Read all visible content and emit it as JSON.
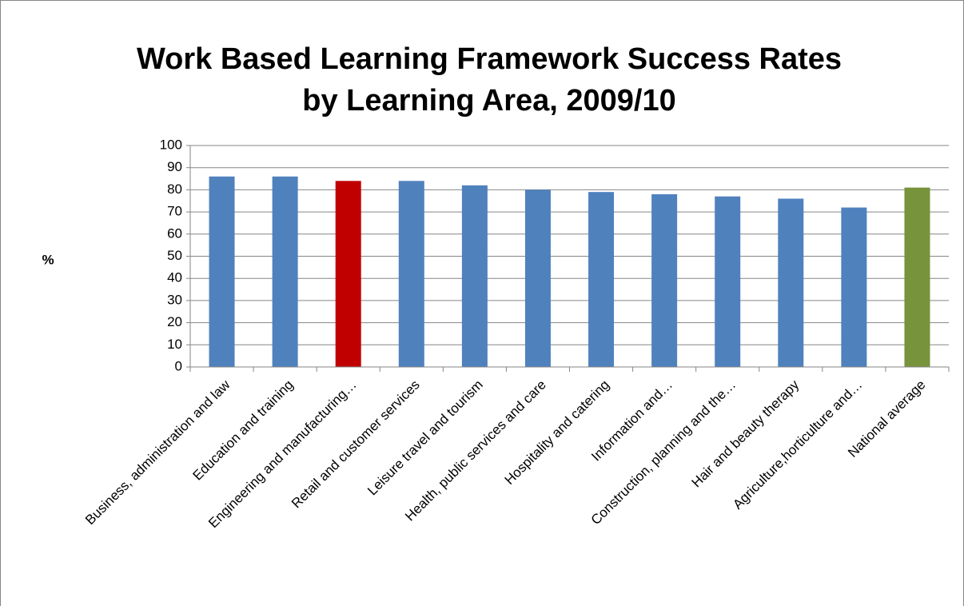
{
  "chart_data": {
    "type": "bar",
    "title": [
      "Work Based Learning Framework Success Rates",
      "by Learning Area, 2009/10"
    ],
    "y_label": "%",
    "categories": [
      "Business, administration and law",
      "Education and training",
      "Engineering and manufacturing…",
      "Retail and customer services",
      "Leisure travel and tourism",
      "Health, public services and care",
      "Hospitality and catering",
      "Information and…",
      "Construction, planning and the…",
      "Hair and beauty therapy",
      "Agriculture,horticulture and…",
      "National average"
    ],
    "values": [
      86,
      86,
      84,
      84,
      82,
      80,
      79,
      78,
      77,
      76,
      72,
      81
    ],
    "colors": [
      "#4f81bd",
      "#4f81bd",
      "#c00000",
      "#4f81bd",
      "#4f81bd",
      "#4f81bd",
      "#4f81bd",
      "#4f81bd",
      "#4f81bd",
      "#4f81bd",
      "#4f81bd",
      "#77933c"
    ],
    "ylim": [
      0,
      100
    ],
    "yticks": [
      0,
      10,
      20,
      30,
      40,
      50,
      60,
      70,
      80,
      90,
      100
    ],
    "grid": true
  }
}
